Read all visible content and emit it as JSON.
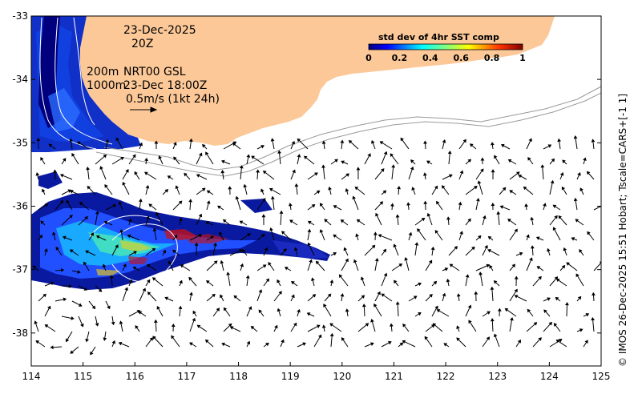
{
  "map": {
    "date": "23-Dec-2025",
    "time": "20Z",
    "isobath_label_1": "200m",
    "isobath_label_2": "1000m",
    "product": "NRT00 GSL",
    "product_time": "23-Dec 18:00Z",
    "arrow_scale_label": "0.5m/s (1kt 24h)",
    "credit": "© IMOS 26-Dec-2025 15:51 Hobart; Tscale=CARS+[-1 1]",
    "lon_ticks": [
      "114",
      "115",
      "116",
      "117",
      "118",
      "119",
      "120",
      "121",
      "122",
      "123",
      "124",
      "125"
    ],
    "lat_ticks": [
      "-33",
      "-34",
      "-35",
      "-36",
      "-37",
      "-38"
    ],
    "lon_values": [
      114,
      115,
      116,
      117,
      118,
      119,
      120,
      121,
      122,
      123,
      124,
      125
    ],
    "lat_values": [
      -33,
      -34,
      -35,
      -36,
      -37,
      -38
    ],
    "lon_range": [
      114,
      125
    ],
    "lat_range": [
      -38.52,
      -33.0
    ]
  },
  "colorbar": {
    "title": "std dev of 4hr SST comp",
    "ticks": [
      "0",
      "0.2",
      "0.4",
      "0.6",
      "0.8",
      "1"
    ],
    "colors": [
      "#00007f",
      "#0000ff",
      "#007fff",
      "#00ffff",
      "#7fff7f",
      "#ffff00",
      "#ff7f00",
      "#ff0000",
      "#7f0000"
    ]
  },
  "colors": {
    "land": "#fcc898",
    "arrow": "#000000",
    "isobath": "#9a9a9a",
    "contour": "#ffffff"
  }
}
